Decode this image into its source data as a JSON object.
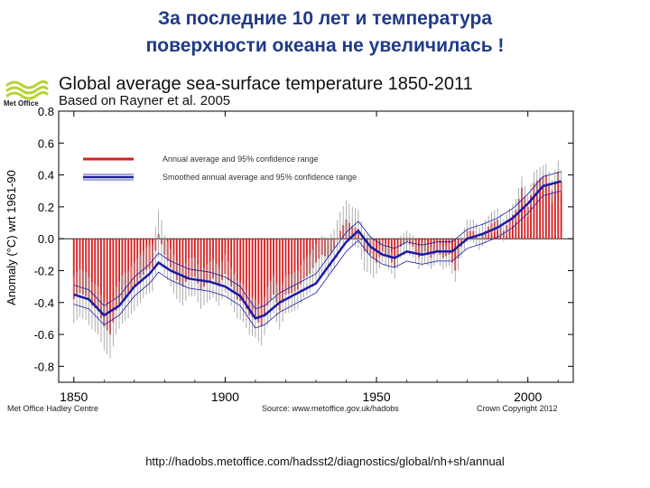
{
  "slide": {
    "title_line1": "За последние 10 лет и температура",
    "title_line2": "поверхности океана не увеличилась !",
    "title_color": "#1f3a8a",
    "source_url": "http://hadobs.metoffice.com/hadsst2/diagnostics/global/nh+sh/annual"
  },
  "logo": {
    "text": "Met Office",
    "icon": "met-office-wave-icon",
    "color": "#b5d334"
  },
  "footer": {
    "left": "Met Office Hadley Centre",
    "middle": "Source: www.metoffice.gov.uk/hadobs",
    "right": "Crown Copyright 2012"
  },
  "chart_data": {
    "type": "bar",
    "title": "Global average sea-surface temperature 1850-2011",
    "subtitle": "Based on Rayner et al. 2005",
    "ylabel": "Anomaly (°C) wrt 1961-90",
    "xlabel": "",
    "xlim": [
      1845,
      2015
    ],
    "ylim": [
      -0.9,
      0.8
    ],
    "xticks": [
      1850,
      1900,
      1950,
      2000
    ],
    "yticks": [
      -0.8,
      -0.6,
      -0.4,
      -0.2,
      0.0,
      0.2,
      0.4,
      0.6,
      0.8
    ],
    "ytick_labels": [
      "-0.8",
      "-0.6",
      "-0.4",
      "-0.2",
      "0.0",
      "0.2",
      "0.4",
      "0.6",
      "0.8"
    ],
    "legend": {
      "position": "top-left",
      "entries": [
        {
          "label": "Annual average and 95% confidence range",
          "color": "#d62020"
        },
        {
          "label": "Smoothed annual average and 95% confidence range",
          "color": "#1a1aa8"
        }
      ]
    },
    "colors": {
      "bars": "#d62020",
      "smooth": "#1a1aa8",
      "ci": "#9a9a9a"
    },
    "smooth_ci_halfwidth": 0.06,
    "annual_anchor_years": [
      1850,
      1852,
      1854,
      1856,
      1858,
      1860,
      1862,
      1864,
      1866,
      1868,
      1870,
      1872,
      1874,
      1876,
      1878,
      1880,
      1882,
      1884,
      1886,
      1888,
      1890,
      1892,
      1894,
      1896,
      1898,
      1900,
      1902,
      1904,
      1906,
      1908,
      1910,
      1912,
      1914,
      1916,
      1918,
      1920,
      1922,
      1924,
      1926,
      1928,
      1930,
      1932,
      1934,
      1936,
      1938,
      1940,
      1942,
      1944,
      1946,
      1948,
      1950,
      1952,
      1954,
      1956,
      1958,
      1960,
      1962,
      1964,
      1966,
      1968,
      1970,
      1972,
      1974,
      1976,
      1978,
      1980,
      1982,
      1984,
      1986,
      1988,
      1990,
      1992,
      1994,
      1996,
      1998,
      2000,
      2002,
      2004,
      2006,
      2008,
      2010,
      2011
    ],
    "annual_anchor_values": [
      -0.38,
      -0.34,
      -0.36,
      -0.42,
      -0.45,
      -0.55,
      -0.6,
      -0.45,
      -0.38,
      -0.35,
      -0.3,
      -0.25,
      -0.2,
      -0.18,
      0.03,
      -0.1,
      -0.18,
      -0.26,
      -0.3,
      -0.24,
      -0.24,
      -0.32,
      -0.28,
      -0.25,
      -0.3,
      -0.22,
      -0.3,
      -0.38,
      -0.4,
      -0.48,
      -0.5,
      -0.55,
      -0.42,
      -0.35,
      -0.45,
      -0.35,
      -0.34,
      -0.32,
      -0.25,
      -0.22,
      -0.15,
      -0.1,
      -0.12,
      -0.06,
      0.05,
      0.12,
      0.08,
      0.06,
      -0.08,
      -0.1,
      -0.15,
      -0.08,
      -0.12,
      -0.18,
      -0.05,
      -0.02,
      -0.05,
      -0.12,
      -0.08,
      -0.12,
      -0.08,
      -0.12,
      -0.1,
      -0.2,
      -0.05,
      0.05,
      0.05,
      0.0,
      0.05,
      0.1,
      0.12,
      0.05,
      0.12,
      0.18,
      0.32,
      0.2,
      0.35,
      0.38,
      0.4,
      0.3,
      0.42,
      0.36
    ],
    "smoothed_anchor_years": [
      1850,
      1855,
      1860,
      1865,
      1870,
      1875,
      1878,
      1882,
      1888,
      1895,
      1900,
      1905,
      1910,
      1913,
      1918,
      1922,
      1930,
      1935,
      1940,
      1944,
      1948,
      1952,
      1956,
      1960,
      1965,
      1970,
      1975,
      1980,
      1985,
      1990,
      1995,
      2000,
      2005,
      2011
    ],
    "smoothed_anchor_values": [
      -0.35,
      -0.38,
      -0.48,
      -0.42,
      -0.3,
      -0.22,
      -0.15,
      -0.2,
      -0.25,
      -0.27,
      -0.3,
      -0.36,
      -0.5,
      -0.48,
      -0.4,
      -0.36,
      -0.28,
      -0.15,
      -0.02,
      0.05,
      -0.05,
      -0.1,
      -0.12,
      -0.08,
      -0.1,
      -0.08,
      -0.08,
      0.0,
      0.03,
      0.07,
      0.13,
      0.22,
      0.33,
      0.36
    ]
  }
}
